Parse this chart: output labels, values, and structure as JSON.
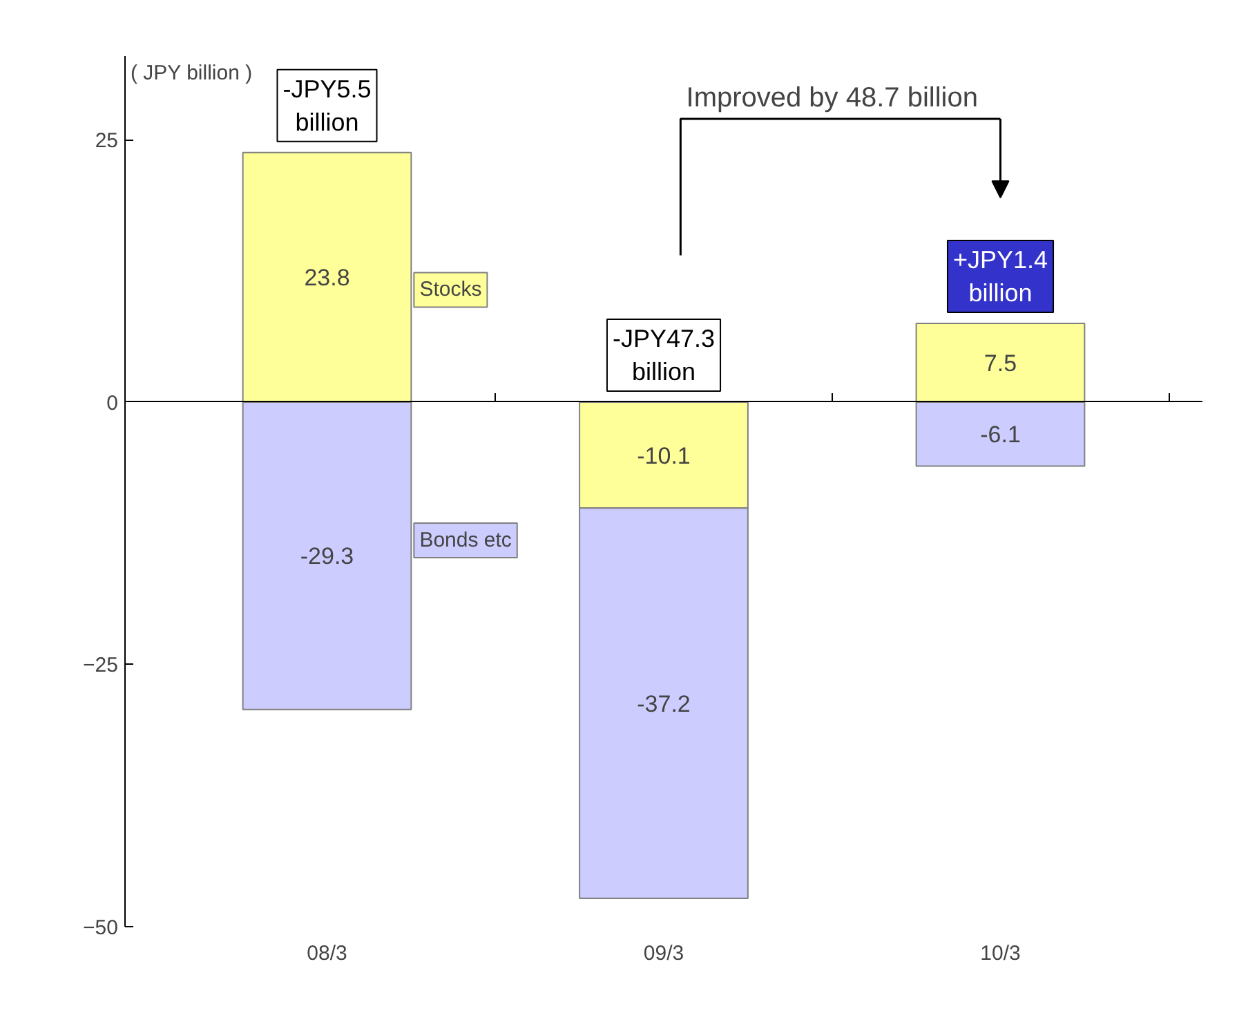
{
  "chart_data": {
    "type": "bar",
    "stacked": true,
    "ylabel": "( JPY billion )",
    "categories": [
      "08/3",
      "09/3",
      "10/3"
    ],
    "series": [
      {
        "name": "Stocks",
        "color": "#ffff99",
        "values": [
          23.8,
          -10.1,
          7.5
        ]
      },
      {
        "name": "Bonds etc",
        "color": "#ccccff",
        "values": [
          -29.3,
          -37.2,
          -6.1
        ]
      }
    ],
    "ylim": [
      -50,
      33
    ],
    "yticks": [
      -50,
      -25,
      0,
      25
    ],
    "data_labels": true,
    "totals": [
      "-JPY5.5 billion",
      "-JPY47.3 billion",
      "+JPY1.4 billion"
    ],
    "annotations": [
      "Improved by 48.7 billion"
    ]
  }
}
